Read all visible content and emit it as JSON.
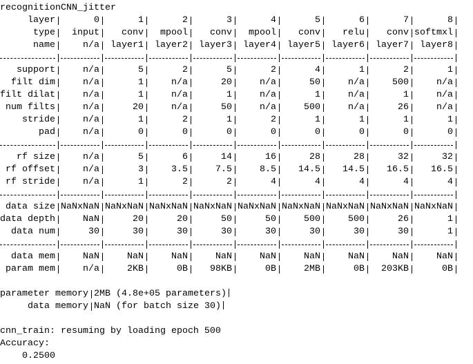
{
  "title": "recognitionCNN_jitter",
  "table": {
    "sections": [
      [
        {
          "label": "layer",
          "cells": [
            "0",
            "1",
            "2",
            "3",
            "4",
            "5",
            "6",
            "7",
            "8"
          ]
        },
        {
          "label": "type",
          "cells": [
            "input",
            "conv",
            "mpool",
            "conv",
            "mpool",
            "conv",
            "relu",
            "conv",
            "softmxl"
          ]
        },
        {
          "label": "name",
          "cells": [
            "n/a",
            "layer1",
            "layer2",
            "layer3",
            "layer4",
            "layer5",
            "layer6",
            "layer7",
            "layer8"
          ]
        }
      ],
      [
        {
          "label": "support",
          "cells": [
            "n/a",
            "5",
            "2",
            "5",
            "2",
            "4",
            "1",
            "2",
            "1"
          ]
        },
        {
          "label": "filt dim",
          "cells": [
            "n/a",
            "1",
            "n/a",
            "20",
            "n/a",
            "50",
            "n/a",
            "500",
            "n/a"
          ]
        },
        {
          "label": "filt dilat",
          "cells": [
            "n/a",
            "1",
            "n/a",
            "1",
            "n/a",
            "1",
            "n/a",
            "1",
            "n/a"
          ]
        },
        {
          "label": "num filts",
          "cells": [
            "n/a",
            "20",
            "n/a",
            "50",
            "n/a",
            "500",
            "n/a",
            "26",
            "n/a"
          ]
        },
        {
          "label": "stride",
          "cells": [
            "n/a",
            "1",
            "2",
            "1",
            "2",
            "1",
            "1",
            "1",
            "1"
          ]
        },
        {
          "label": "pad",
          "cells": [
            "n/a",
            "0",
            "0",
            "0",
            "0",
            "0",
            "0",
            "0",
            "0"
          ]
        }
      ],
      [
        {
          "label": "rf size",
          "cells": [
            "n/a",
            "5",
            "6",
            "14",
            "16",
            "28",
            "28",
            "32",
            "32"
          ]
        },
        {
          "label": "rf offset",
          "cells": [
            "n/a",
            "3",
            "3.5",
            "7.5",
            "8.5",
            "14.5",
            "14.5",
            "16.5",
            "16.5"
          ]
        },
        {
          "label": "rf stride",
          "cells": [
            "n/a",
            "1",
            "2",
            "2",
            "4",
            "4",
            "4",
            "4",
            "4"
          ]
        }
      ],
      [
        {
          "label": "data size",
          "cells": [
            "NaNxNaN",
            "NaNxNaN",
            "NaNxNaN",
            "NaNxNaN",
            "NaNxNaN",
            "NaNxNaN",
            "NaNxNaN",
            "NaNxNaN",
            "NaNxNaN"
          ]
        },
        {
          "label": "data depth",
          "cells": [
            "NaN",
            "20",
            "20",
            "50",
            "50",
            "500",
            "500",
            "26",
            "1"
          ]
        },
        {
          "label": "data num",
          "cells": [
            "30",
            "30",
            "30",
            "30",
            "30",
            "30",
            "30",
            "30",
            "1"
          ]
        }
      ],
      [
        {
          "label": "data mem",
          "cells": [
            "NaN",
            "NaN",
            "NaN",
            "NaN",
            "NaN",
            "NaN",
            "NaN",
            "NaN",
            "NaN"
          ]
        },
        {
          "label": "param mem",
          "cells": [
            "n/a",
            "2KB",
            "0B",
            "98KB",
            "0B",
            "2MB",
            "0B",
            "203KB",
            "0B"
          ]
        }
      ]
    ]
  },
  "summary": [
    {
      "label": "parameter memory",
      "value": "2MB (4.8e+05 parameters)"
    },
    {
      "label": "data memory",
      "value": "NaN (for batch size 30)"
    }
  ],
  "log": [
    "cnn_train: resuming by loading epoch 500",
    "Accuracy:"
  ],
  "result": "0.2500"
}
